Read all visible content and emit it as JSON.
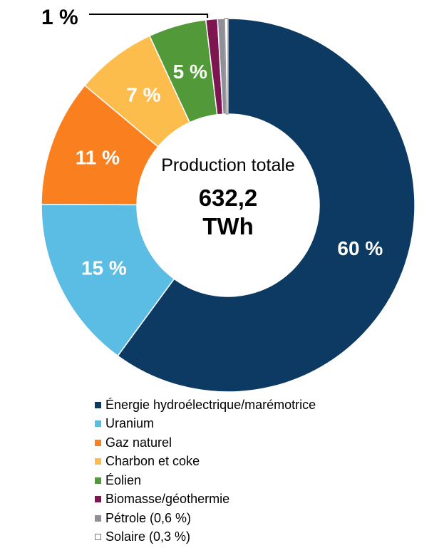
{
  "chart_data": {
    "type": "pie",
    "center_label": "Production totale",
    "center_value": "632,2",
    "center_unit": "TWh",
    "small_slices_label": "1 %",
    "slices": [
      {
        "name": "Énergie hydroélectrique/marémotrice",
        "value": 60,
        "label": "60 %",
        "color": "#0d3a63",
        "legend": "Énergie hydroélectrique/marémotrice"
      },
      {
        "name": "Uranium",
        "value": 15,
        "label": "15 %",
        "color": "#5bbde4",
        "legend": "Uranium"
      },
      {
        "name": "Gaz naturel",
        "value": 11,
        "label": "11 %",
        "color": "#fa7f1e",
        "legend": "Gaz naturel"
      },
      {
        "name": "Charbon et coke",
        "value": 7,
        "label": "7 %",
        "color": "#fdbd4d",
        "legend": "Charbon et coke"
      },
      {
        "name": "Éolien",
        "value": 5,
        "label": "5 %",
        "color": "#52993a",
        "legend": "Éolien"
      },
      {
        "name": "Biomasse/géothermie",
        "value": 1,
        "label": "",
        "color": "#7d1550",
        "legend": "Biomasse/géothermie"
      },
      {
        "name": "Pétrole",
        "value": 0.6,
        "label": "",
        "color": "#8e8f99",
        "legend": "Pétrole (0,6 %)"
      },
      {
        "name": "Solaire",
        "value": 0.3,
        "label": "",
        "color": "#ffffff",
        "legend": "Solaire (0,3 %)"
      }
    ]
  }
}
